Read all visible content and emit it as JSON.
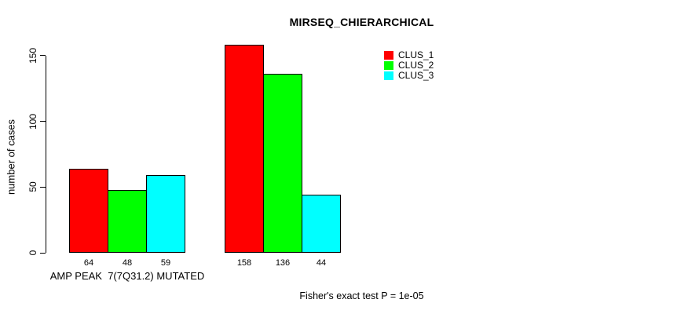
{
  "chart_data": {
    "type": "bar",
    "title": "MIRSEQ_CHIERARCHICAL",
    "ylabel": "number of cases",
    "xlabel": "AMP PEAK  7(7Q31.2) MUTATED",
    "footnote": "Fisher's exact test P = 1e-05",
    "categories": [
      "AMP PEAK  7(7Q31.2) MUTATED",
      ""
    ],
    "series": [
      {
        "name": "CLUS_1",
        "color": "#ff0000",
        "values": [
          64,
          158
        ]
      },
      {
        "name": "CLUS_2",
        "color": "#00ff00",
        "values": [
          48,
          136
        ]
      },
      {
        "name": "CLUS_3",
        "color": "#00ffff",
        "values": [
          59,
          44
        ]
      }
    ],
    "yticks": [
      0,
      50,
      100,
      150
    ],
    "ylim": [
      0,
      160
    ],
    "grid": false,
    "legend_position": "top-right",
    "bar_value_labels_shown": true
  },
  "colors": {
    "axis": "#000000",
    "text": "#000000",
    "background": "#ffffff"
  }
}
